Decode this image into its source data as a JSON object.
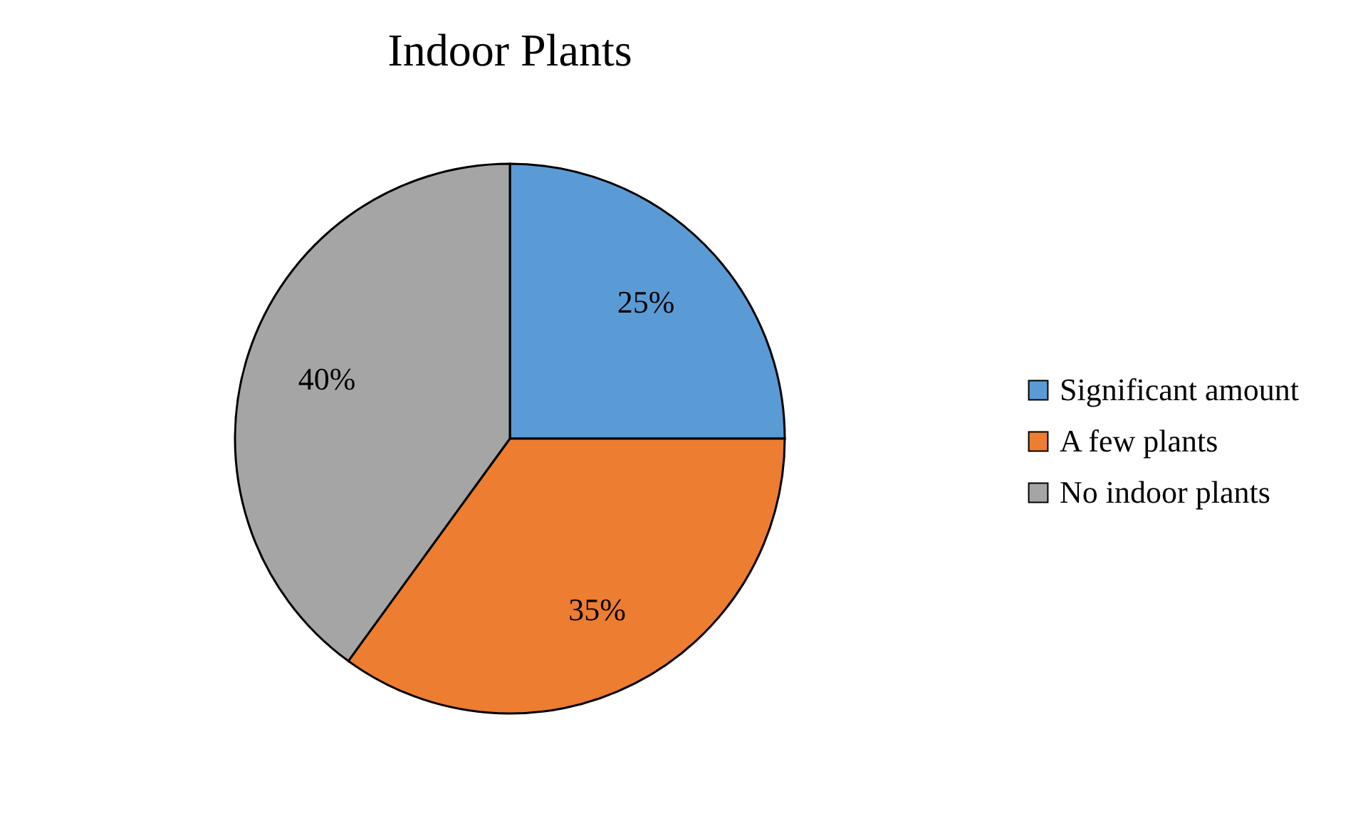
{
  "chart_data": {
    "type": "pie",
    "title": "Indoor Plants",
    "categories": [
      "Significant amount",
      "A few plants",
      "No indoor plants"
    ],
    "values": [
      25,
      35,
      40
    ],
    "colors": [
      "#5b9bd5",
      "#ed7d31",
      "#a5a5a5"
    ],
    "value_labels": [
      "25%",
      "35%",
      "40%"
    ],
    "legend": "right"
  }
}
